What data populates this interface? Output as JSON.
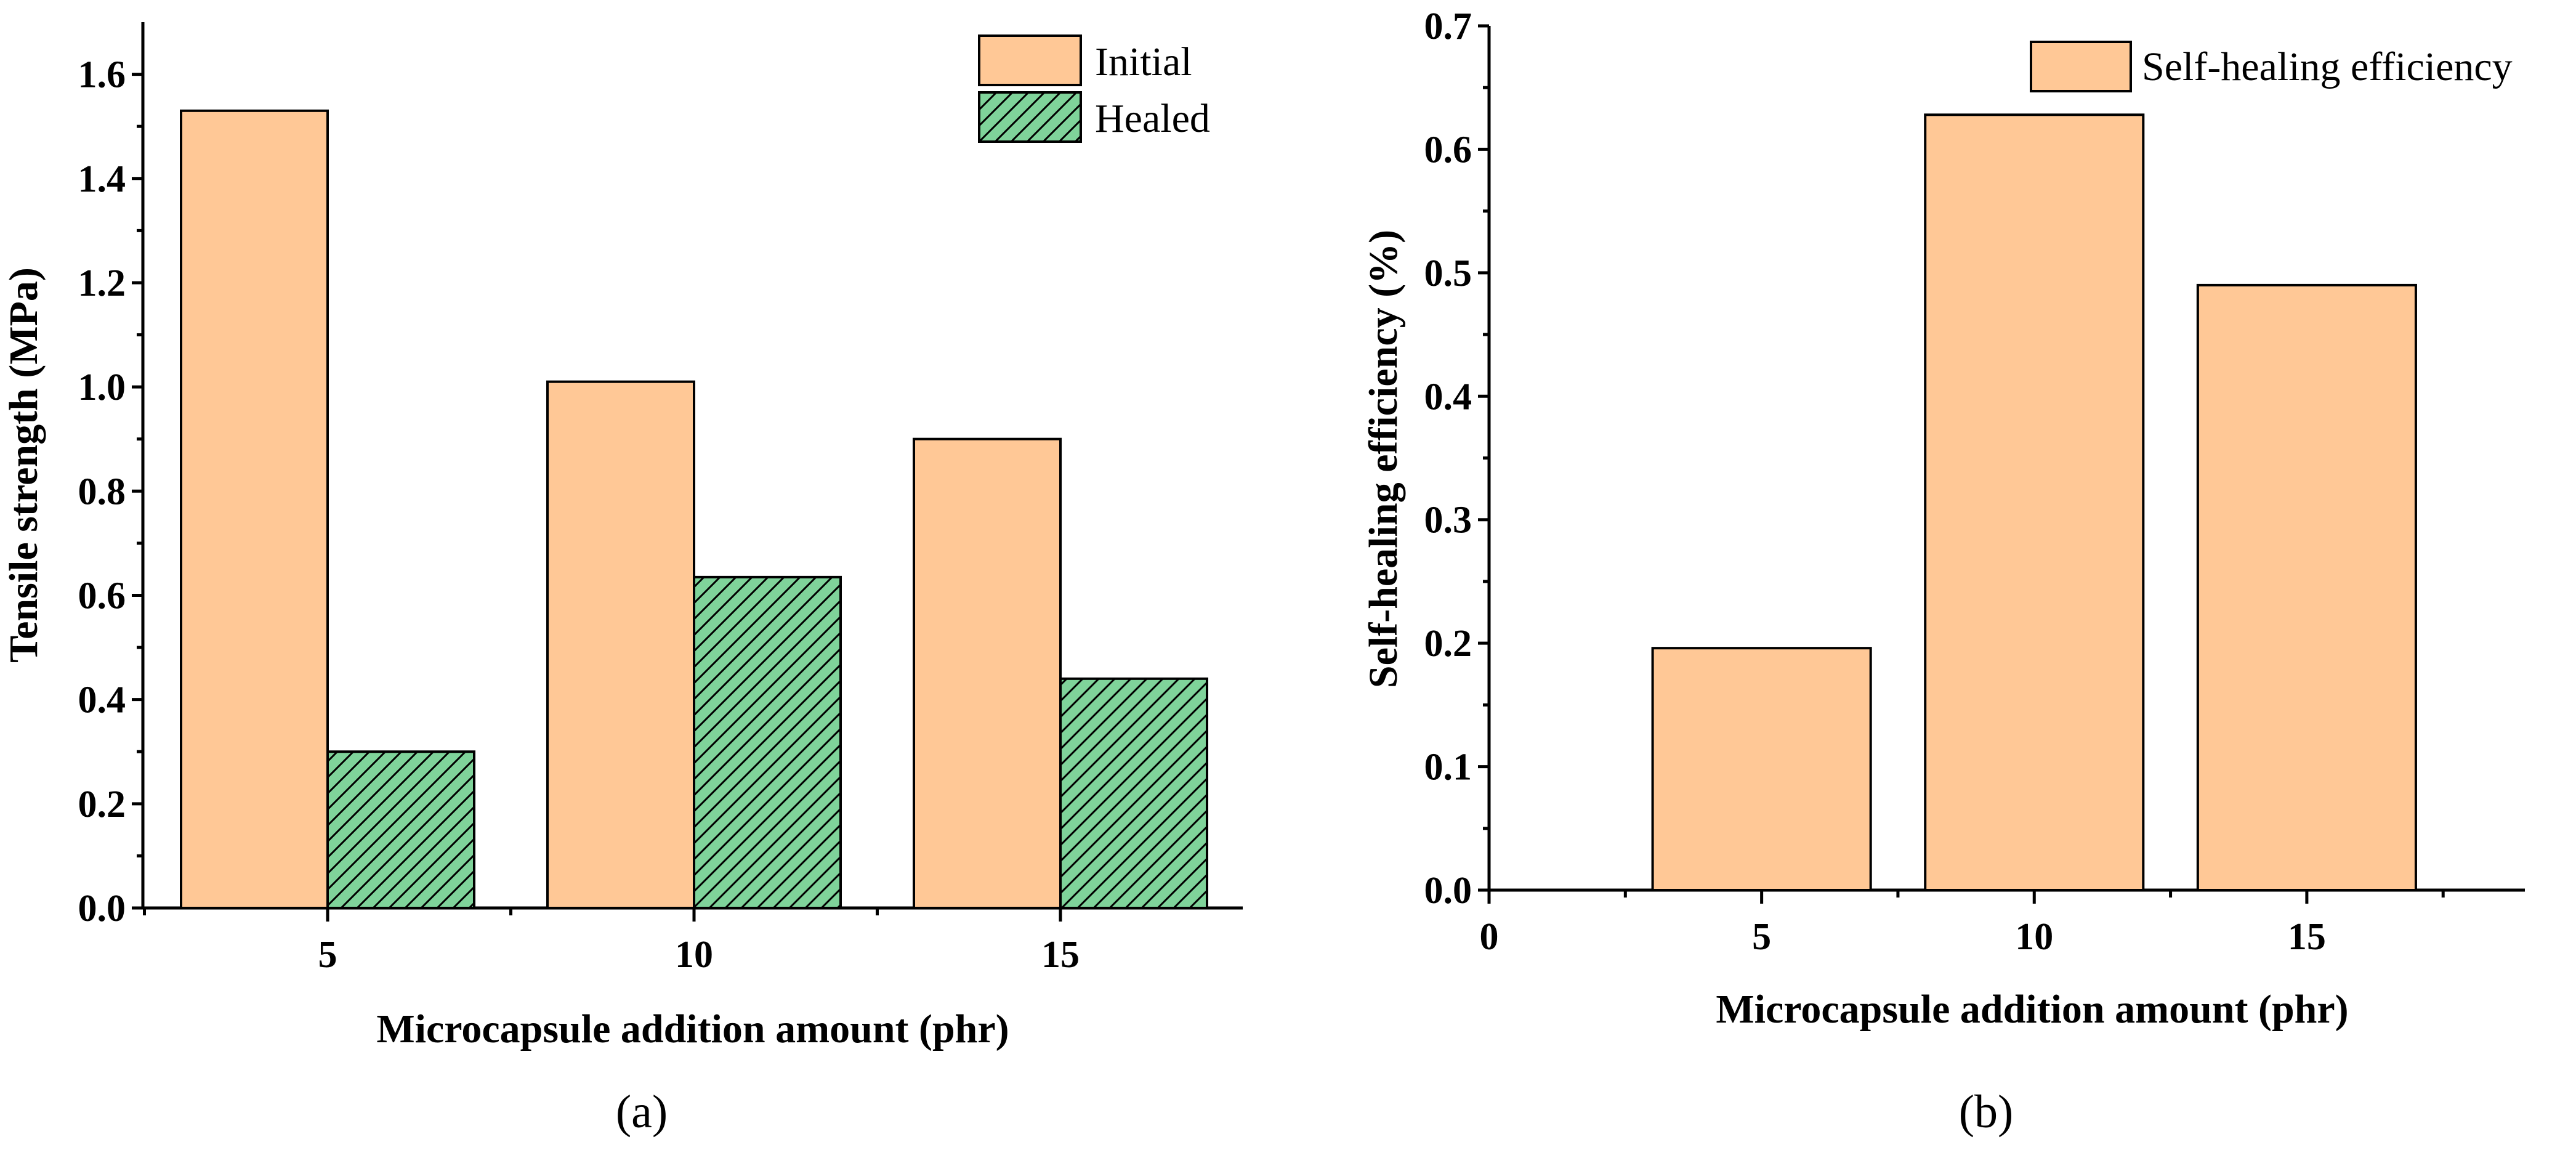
{
  "colors": {
    "initial": "#ffc896",
    "healed": "#7fd39a",
    "axis": "#000000"
  },
  "chart_data": [
    {
      "id": "a",
      "type": "bar",
      "panel_label": "(a)",
      "xlabel": "Microcapsule addition amount (phr)",
      "ylabel": "Tensile strength (MPa)",
      "categories": [
        "5",
        "10",
        "15"
      ],
      "series": [
        {
          "name": "Initial",
          "values": [
            1.53,
            1.01,
            0.9
          ]
        },
        {
          "name": "Healed",
          "values": [
            0.3,
            0.635,
            0.44
          ]
        }
      ],
      "ylim": [
        0,
        1.7
      ],
      "yticks": [
        "0.0",
        "0.2",
        "0.4",
        "0.6",
        "0.8",
        "1.0",
        "1.2",
        "1.4",
        "1.6"
      ],
      "legend_position": "top-right"
    },
    {
      "id": "b",
      "type": "bar",
      "panel_label": "(b)",
      "xlabel": "Microcapsule addition amount (phr)",
      "ylabel": "Self-healing efficiency (%)",
      "x": [
        5,
        10,
        15
      ],
      "xticks": [
        "0",
        "5",
        "10",
        "15"
      ],
      "series": [
        {
          "name": "Self-healing efficiency",
          "values": [
            0.196,
            0.628,
            0.49
          ]
        }
      ],
      "xlim": [
        0,
        19
      ],
      "ylim": [
        0,
        0.7
      ],
      "yticks": [
        "0.0",
        "0.1",
        "0.2",
        "0.3",
        "0.4",
        "0.5",
        "0.6",
        "0.7"
      ],
      "legend_position": "top-right"
    }
  ]
}
